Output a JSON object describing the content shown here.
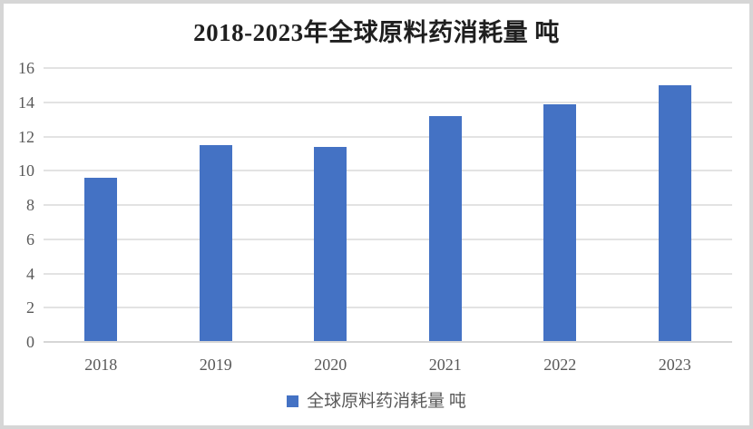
{
  "chart_data": {
    "type": "bar",
    "title": "2018-2023年全球原料药消耗量 吨",
    "categories": [
      "2018",
      "2019",
      "2020",
      "2021",
      "2022",
      "2023"
    ],
    "series": [
      {
        "name": "全球原料药消耗量 吨",
        "values": [
          9.6,
          11.5,
          11.4,
          13.2,
          13.9,
          15.0
        ]
      }
    ],
    "xlabel": "",
    "ylabel": "",
    "ylim": [
      0,
      16
    ],
    "yticks": [
      0,
      2,
      4,
      6,
      8,
      10,
      12,
      14,
      16
    ],
    "grid": true,
    "legend_position": "bottom",
    "colors": {
      "bar": "#4472C4",
      "gridline": "#E3E3E3",
      "axis_line": "#D6D6D6",
      "tick_text": "#595959",
      "title_text": "#1F1F1F",
      "frame_border": "#D6D6D6",
      "background": "#FFFFFF"
    }
  }
}
